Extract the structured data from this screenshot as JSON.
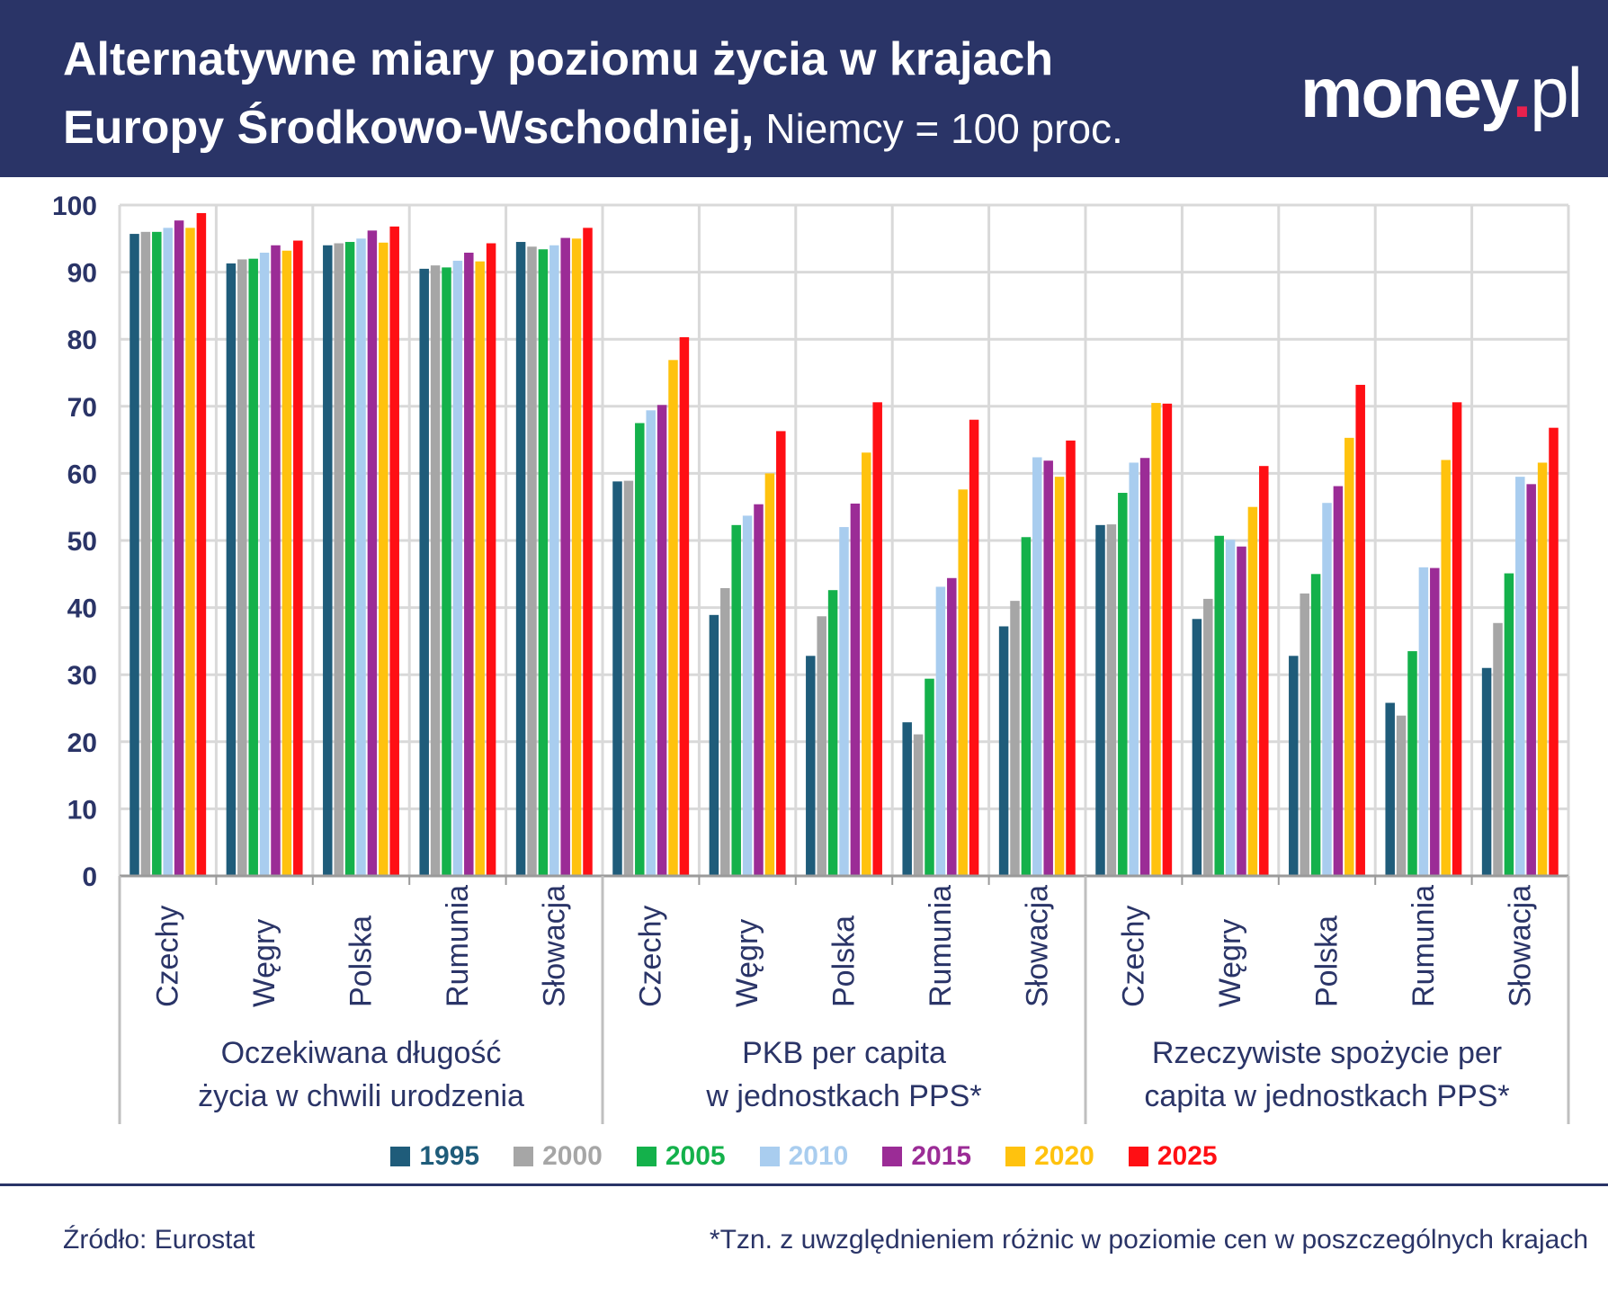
{
  "header": {
    "title_line1": "Alternatywne miary poziomu życia w krajach",
    "title_line2_bold": "Europy Środkowo-Wschodniej,",
    "title_line2_regular": " Niemcy = 100 proc.",
    "logo_main": "money",
    "logo_dot": ".",
    "logo_suffix": "pl"
  },
  "colors": {
    "header_bg": "#2a3467",
    "text": "#2a3467",
    "grid": "#d9d9d9",
    "logo_dot": "#e8214e"
  },
  "chart_data": {
    "type": "bar",
    "ylim": [
      0,
      100
    ],
    "yticks": [
      0,
      10,
      20,
      30,
      40,
      50,
      60,
      70,
      80,
      90,
      100
    ],
    "grid": true,
    "legend_position": "bottom",
    "series": [
      {
        "name": "1995",
        "color": "#1f5c7a"
      },
      {
        "name": "2000",
        "color": "#a6a6a6"
      },
      {
        "name": "2005",
        "color": "#14b14b"
      },
      {
        "name": "2010",
        "color": "#a9cdef"
      },
      {
        "name": "2015",
        "color": "#9b2c96"
      },
      {
        "name": "2020",
        "color": "#ffc20e"
      },
      {
        "name": "2025",
        "color": "#ff0f14"
      }
    ],
    "groups": [
      {
        "label_line1": "Oczekiwana długość",
        "label_line2": "życia w chwili urodzenia",
        "categories": [
          {
            "name": "Czechy",
            "values": [
              95.7,
              96.0,
              96.0,
              96.6,
              97.7,
              96.6,
              98.8
            ]
          },
          {
            "name": "Węgry",
            "values": [
              91.3,
              91.9,
              92.0,
              92.9,
              94.0,
              93.2,
              94.7
            ]
          },
          {
            "name": "Polska",
            "values": [
              94.0,
              94.3,
              94.5,
              95.0,
              96.2,
              94.4,
              96.8
            ]
          },
          {
            "name": "Rumunia",
            "values": [
              90.5,
              91.0,
              90.7,
              91.7,
              92.9,
              91.6,
              94.3
            ]
          },
          {
            "name": "Słowacja",
            "values": [
              94.5,
              93.8,
              93.4,
              94.0,
              95.1,
              95.0,
              96.6
            ]
          }
        ]
      },
      {
        "label_line1": "PKB per capita",
        "label_line2": "w jednostkach PPS*",
        "categories": [
          {
            "name": "Czechy",
            "values": [
              58.8,
              58.9,
              67.5,
              69.4,
              70.2,
              76.9,
              80.3
            ]
          },
          {
            "name": "Węgry",
            "values": [
              38.9,
              42.9,
              52.3,
              53.7,
              55.4,
              60.0,
              66.3
            ]
          },
          {
            "name": "Polska",
            "values": [
              32.8,
              38.7,
              42.6,
              52.0,
              55.5,
              63.1,
              70.6
            ]
          },
          {
            "name": "Rumunia",
            "values": [
              22.9,
              21.1,
              29.4,
              43.1,
              44.4,
              57.6,
              68.0
            ]
          },
          {
            "name": "Słowacja",
            "values": [
              37.2,
              41.0,
              50.5,
              62.4,
              61.9,
              59.5,
              64.9
            ]
          }
        ]
      },
      {
        "label_line1": "Rzeczywiste spożycie per",
        "label_line2": "capita w jednostkach PPS*",
        "categories": [
          {
            "name": "Czechy",
            "values": [
              52.3,
              52.4,
              57.1,
              61.6,
              62.3,
              70.5,
              70.4
            ]
          },
          {
            "name": "Węgry",
            "values": [
              38.3,
              41.3,
              50.7,
              50.1,
              49.1,
              55.0,
              61.1
            ]
          },
          {
            "name": "Polska",
            "values": [
              32.8,
              42.1,
              45.0,
              55.6,
              58.1,
              65.3,
              73.2
            ]
          },
          {
            "name": "Rumunia",
            "values": [
              25.8,
              23.9,
              33.5,
              46.0,
              45.9,
              62.0,
              70.6
            ]
          },
          {
            "name": "Słowacja",
            "values": [
              31.0,
              37.7,
              45.1,
              59.5,
              58.4,
              61.6,
              66.8
            ]
          }
        ]
      }
    ]
  },
  "footer": {
    "source": "Źródło: Eurostat",
    "footnote": "*Tzn. z uwzględnieniem różnic w poziomie cen w poszczególnych krajach"
  }
}
